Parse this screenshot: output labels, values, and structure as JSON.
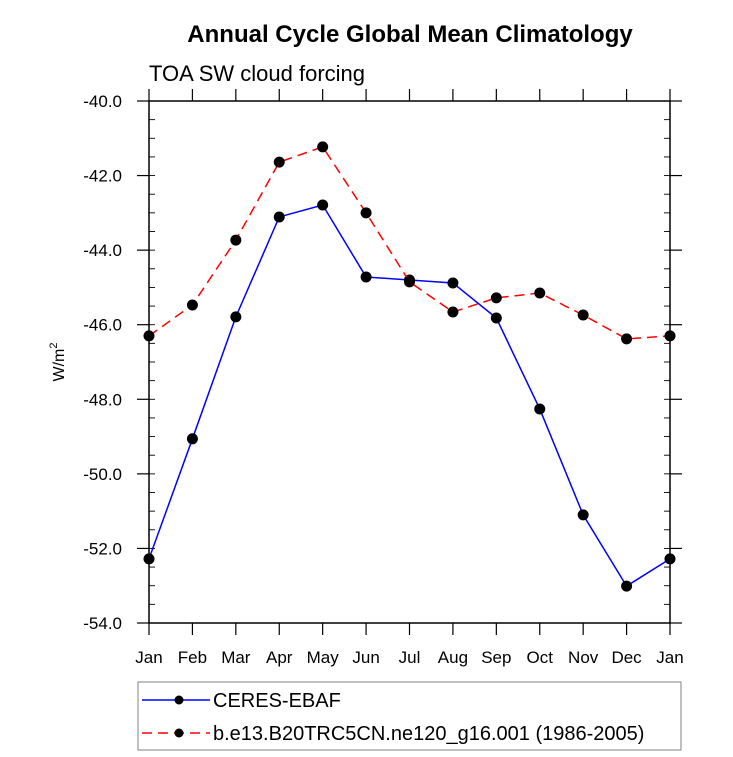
{
  "chart_data": {
    "type": "line",
    "title": "Annual Cycle Global Mean Climatology",
    "subtitle": "TOA SW cloud forcing",
    "xlabel": "",
    "ylabel": "W/m",
    "ylabel_superscript": "2",
    "categories": [
      "Jan",
      "Feb",
      "Mar",
      "Apr",
      "May",
      "Jun",
      "Jul",
      "Aug",
      "Sep",
      "Oct",
      "Nov",
      "Dec",
      "Jan"
    ],
    "ylim": [
      -54.0,
      -40.0
    ],
    "yticks": [
      -40.0,
      -42.0,
      -44.0,
      -46.0,
      -48.0,
      -50.0,
      -52.0,
      -54.0
    ],
    "ytick_labels": [
      "-40.0",
      "-42.0",
      "-44.0",
      "-46.0",
      "-48.0",
      "-50.0",
      "-52.0",
      "-54.0"
    ],
    "yminor_step": 0.5,
    "grid": false,
    "legend_position": "bottom",
    "series": [
      {
        "name": "CERES-EBAF",
        "color": "#0000ff",
        "dash": "solid",
        "marker": "filled-circle",
        "values": [
          -52.28,
          -49.06,
          -45.79,
          -43.11,
          -42.79,
          -44.72,
          -44.8,
          -44.88,
          -45.82,
          -48.26,
          -51.1,
          -53.01,
          -52.28
        ]
      },
      {
        "name": "b.e13.B20TRC5CN.ne120_g16.001 (1986-2005)",
        "color": "#ff0000",
        "dash": "dashed",
        "marker": "filled-circle",
        "values": [
          -46.3,
          -45.47,
          -43.73,
          -41.64,
          -41.23,
          -43.0,
          -44.85,
          -45.66,
          -45.28,
          -45.15,
          -45.74,
          -46.38,
          -46.3
        ]
      }
    ]
  }
}
